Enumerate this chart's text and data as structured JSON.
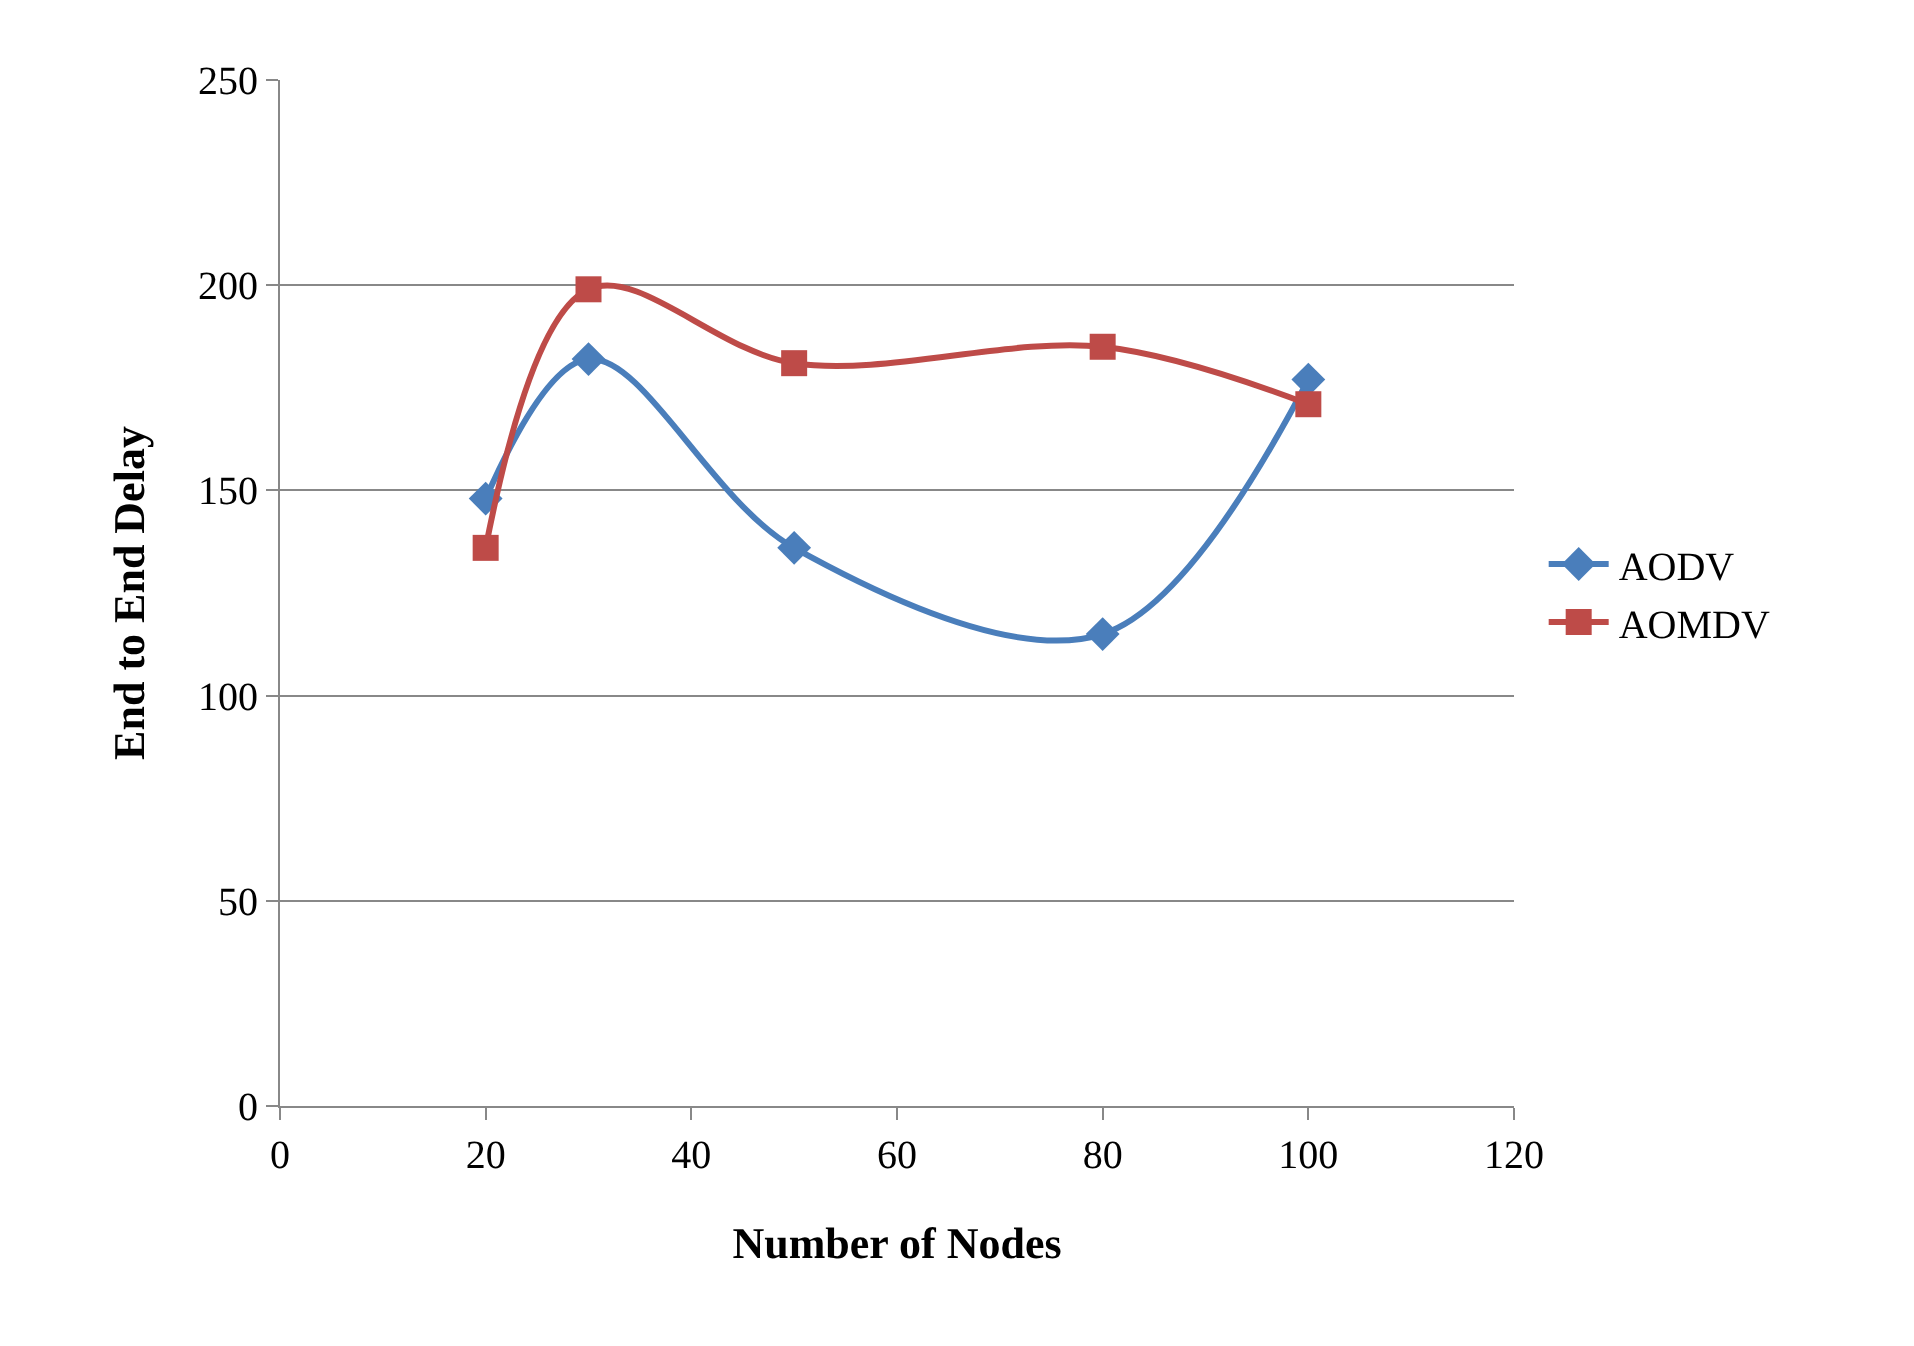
{
  "chart_data": {
    "type": "line",
    "xlabel": "Number of Nodes",
    "ylabel": "End to End Delay",
    "x": [
      20,
      30,
      50,
      80,
      100
    ],
    "series": [
      {
        "name": "AODV",
        "color": "#4a7ebb",
        "values": [
          148,
          182,
          136,
          115,
          177
        ],
        "marker": "diamond"
      },
      {
        "name": "AOMDV",
        "color": "#be4b48",
        "values": [
          136,
          199,
          181,
          185,
          171
        ],
        "marker": "square"
      }
    ],
    "xlim": [
      0,
      120
    ],
    "xticks": [
      0,
      20,
      40,
      60,
      80,
      100,
      120
    ],
    "ylim": [
      0,
      250
    ],
    "yticks": [
      0,
      50,
      100,
      150,
      200,
      250
    ],
    "grid": "y",
    "legend": "right",
    "line_style": "solid"
  }
}
